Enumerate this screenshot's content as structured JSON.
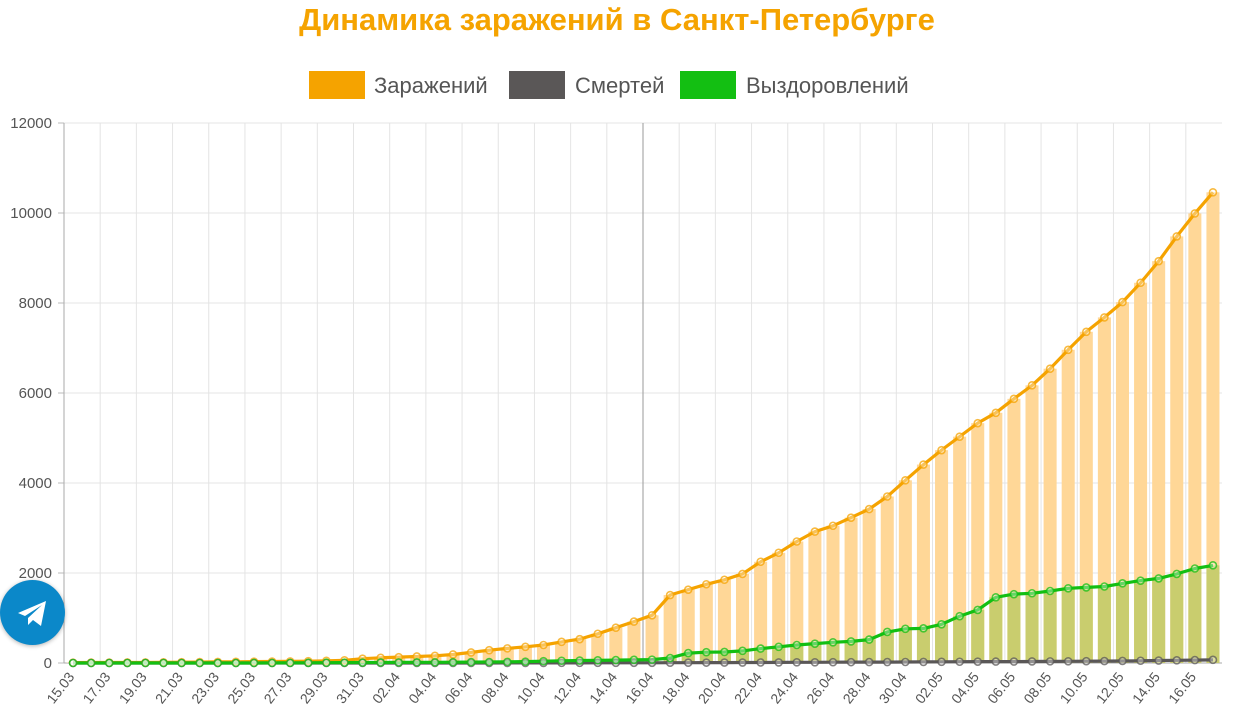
{
  "colors": {
    "infected": "#f5a300",
    "infected_bar": "#ffd797",
    "deaths": "#5a5757",
    "recovered": "#13bf12",
    "recovered_bar": "#c9cd6e",
    "grid": "#e4e4e4"
  },
  "chart_data": {
    "type": "bar+line",
    "title": "Динамика заражений в Санкт-Петербурге",
    "legend_position": "top-center",
    "grid": true,
    "ylim": [
      0,
      12000
    ],
    "yticks": [
      0,
      2000,
      4000,
      6000,
      8000,
      10000,
      12000
    ],
    "categories": [
      "15.03",
      "16.03",
      "17.03",
      "18.03",
      "19.03",
      "20.03",
      "21.03",
      "22.03",
      "23.03",
      "24.03",
      "25.03",
      "26.03",
      "27.03",
      "28.03",
      "29.03",
      "30.03",
      "31.03",
      "01.04",
      "02.04",
      "03.04",
      "04.04",
      "05.04",
      "06.04",
      "07.04",
      "08.04",
      "09.04",
      "10.04",
      "11.04",
      "12.04",
      "13.04",
      "14.04",
      "15.04",
      "16.04",
      "17.04",
      "18.04",
      "19.04",
      "20.04",
      "21.04",
      "22.04",
      "23.04",
      "24.04",
      "25.04",
      "26.04",
      "27.04",
      "28.04",
      "29.04",
      "30.04",
      "01.05",
      "02.05",
      "03.05",
      "04.05",
      "05.05",
      "06.05",
      "07.05",
      "08.05",
      "09.05",
      "10.05",
      "11.05",
      "12.05",
      "13.05",
      "14.05",
      "15.05",
      "16.05",
      "17.05"
    ],
    "xtick_labels": [
      "15.03",
      "17.03",
      "19.03",
      "21.03",
      "23.03",
      "25.03",
      "27.03",
      "29.03",
      "31.03",
      "02.04",
      "04.04",
      "06.04",
      "08.04",
      "10.04",
      "12.04",
      "14.04",
      "16.04",
      "18.04",
      "20.04",
      "22.04",
      "24.04",
      "26.04",
      "28.04",
      "30.04",
      "02.05",
      "04.05",
      "06.05",
      "08.05",
      "10.05",
      "12.05",
      "14.05",
      "16.05"
    ],
    "series": [
      {
        "name": "Заражений",
        "values": [
          8,
          10,
          10,
          12,
          12,
          15,
          18,
          20,
          25,
          27,
          30,
          33,
          35,
          40,
          48,
          60,
          95,
          115,
          130,
          145,
          160,
          190,
          235,
          285,
          325,
          360,
          400,
          470,
          530,
          650,
          785,
          920,
          1060,
          1510,
          1630,
          1750,
          1850,
          1980,
          2250,
          2450,
          2700,
          2920,
          3050,
          3230,
          3420,
          3700,
          4060,
          4410,
          4730,
          5030,
          5330,
          5560,
          5870,
          6170,
          6540,
          6960,
          7360,
          7680,
          8020,
          8450,
          8930,
          9480,
          9990,
          10460
        ]
      },
      {
        "name": "Смертей",
        "values": [
          0,
          0,
          0,
          0,
          0,
          0,
          0,
          0,
          0,
          0,
          0,
          0,
          0,
          0,
          0,
          0,
          0,
          0,
          0,
          1,
          1,
          1,
          1,
          1,
          2,
          2,
          2,
          3,
          3,
          4,
          4,
          5,
          5,
          6,
          7,
          8,
          9,
          10,
          11,
          13,
          15,
          16,
          18,
          19,
          20,
          21,
          22,
          24,
          26,
          28,
          30,
          31,
          32,
          34,
          36,
          38,
          40,
          43,
          45,
          50,
          55,
          60,
          65,
          70
        ]
      },
      {
        "name": "Выздоровлений",
        "values": [
          0,
          0,
          0,
          0,
          0,
          0,
          0,
          0,
          0,
          0,
          1,
          2,
          3,
          5,
          7,
          8,
          10,
          12,
          14,
          15,
          16,
          18,
          20,
          22,
          25,
          30,
          40,
          50,
          55,
          60,
          65,
          70,
          75,
          110,
          220,
          240,
          245,
          270,
          320,
          360,
          400,
          430,
          460,
          480,
          520,
          690,
          760,
          770,
          860,
          1040,
          1180,
          1460,
          1530,
          1550,
          1600,
          1660,
          1680,
          1700,
          1770,
          1830,
          1880,
          1980,
          2100,
          2170
        ]
      }
    ]
  },
  "telegram": {
    "icon": "telegram-icon"
  }
}
